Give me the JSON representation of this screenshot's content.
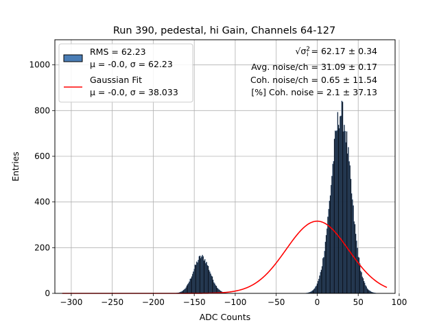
{
  "chart_data": {
    "type": "bar",
    "title": "Run 390, pedestal, hi Gain, Channels 64-127",
    "xlabel": "ADC Counts",
    "ylabel": "Entries",
    "xlim": [
      -320,
      95
    ],
    "ylim": [
      0,
      1110
    ],
    "xticks": [
      -300,
      -250,
      -200,
      -150,
      -100,
      -50,
      0,
      50,
      100
    ],
    "yticks": [
      0,
      200,
      400,
      600,
      800,
      1000
    ],
    "grid": true,
    "legend_position": "top-left",
    "bin_width": 1,
    "histogram_peaks": [
      {
        "center": 29,
        "sigma": 12,
        "peak": 790
      },
      {
        "center": -141,
        "sigma": 10,
        "peak": 160
      }
    ],
    "histogram_range": [
      -185,
      88
    ],
    "series": [
      {
        "kind": "histogram",
        "label": "RMS = 62.23",
        "sublabel": "μ = -0.0, σ = 62.23",
        "color": "#4a7db5",
        "edge": "#000000"
      },
      {
        "kind": "line",
        "label": "Gaussian Fit",
        "sublabel": "μ = -0.0, σ = 38.033",
        "color": "#ff0000",
        "mu": 0.0,
        "sigma": 38.033,
        "amplitude": 316,
        "x_range": [
          -311,
          85
        ]
      }
    ],
    "annotations": [
      {
        "prefix": "√σ",
        "sup": "2",
        "sub": "i",
        "text": " = 62.17 ± 0.34"
      },
      {
        "text": "Avg. noise/ch = 31.09 ± 0.17"
      },
      {
        "text": "Coh. noise/ch = 0.65 ± 11.54"
      },
      {
        "text": "[%] Coh. noise = 2.1 ± 37.13"
      }
    ]
  }
}
